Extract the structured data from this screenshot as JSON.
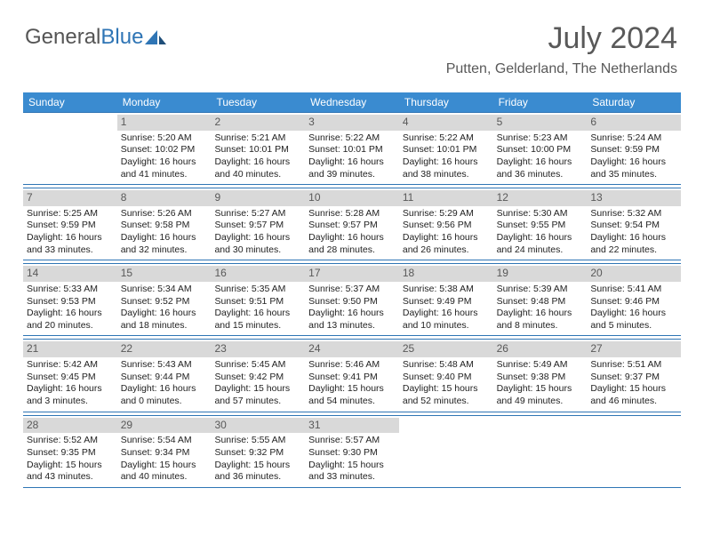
{
  "logo": {
    "part1": "General",
    "part2": "Blue"
  },
  "title": {
    "month": "July 2024",
    "location": "Putten, Gelderland, The Netherlands"
  },
  "colors": {
    "header_bg": "#3a8bd0",
    "header_text": "#ffffff",
    "daynum_bg": "#d9d9d9",
    "rule": "#2f75b5",
    "text": "#222222",
    "title_text": "#595959",
    "logo_accent": "#2f75b5"
  },
  "day_names": [
    "Sunday",
    "Monday",
    "Tuesday",
    "Wednesday",
    "Thursday",
    "Friday",
    "Saturday"
  ],
  "weeks": [
    [
      {
        "n": "",
        "t": ""
      },
      {
        "n": "1",
        "t": "Sunrise: 5:20 AM\nSunset: 10:02 PM\nDaylight: 16 hours and 41 minutes."
      },
      {
        "n": "2",
        "t": "Sunrise: 5:21 AM\nSunset: 10:01 PM\nDaylight: 16 hours and 40 minutes."
      },
      {
        "n": "3",
        "t": "Sunrise: 5:22 AM\nSunset: 10:01 PM\nDaylight: 16 hours and 39 minutes."
      },
      {
        "n": "4",
        "t": "Sunrise: 5:22 AM\nSunset: 10:01 PM\nDaylight: 16 hours and 38 minutes."
      },
      {
        "n": "5",
        "t": "Sunrise: 5:23 AM\nSunset: 10:00 PM\nDaylight: 16 hours and 36 minutes."
      },
      {
        "n": "6",
        "t": "Sunrise: 5:24 AM\nSunset: 9:59 PM\nDaylight: 16 hours and 35 minutes."
      }
    ],
    [
      {
        "n": "7",
        "t": "Sunrise: 5:25 AM\nSunset: 9:59 PM\nDaylight: 16 hours and 33 minutes."
      },
      {
        "n": "8",
        "t": "Sunrise: 5:26 AM\nSunset: 9:58 PM\nDaylight: 16 hours and 32 minutes."
      },
      {
        "n": "9",
        "t": "Sunrise: 5:27 AM\nSunset: 9:57 PM\nDaylight: 16 hours and 30 minutes."
      },
      {
        "n": "10",
        "t": "Sunrise: 5:28 AM\nSunset: 9:57 PM\nDaylight: 16 hours and 28 minutes."
      },
      {
        "n": "11",
        "t": "Sunrise: 5:29 AM\nSunset: 9:56 PM\nDaylight: 16 hours and 26 minutes."
      },
      {
        "n": "12",
        "t": "Sunrise: 5:30 AM\nSunset: 9:55 PM\nDaylight: 16 hours and 24 minutes."
      },
      {
        "n": "13",
        "t": "Sunrise: 5:32 AM\nSunset: 9:54 PM\nDaylight: 16 hours and 22 minutes."
      }
    ],
    [
      {
        "n": "14",
        "t": "Sunrise: 5:33 AM\nSunset: 9:53 PM\nDaylight: 16 hours and 20 minutes."
      },
      {
        "n": "15",
        "t": "Sunrise: 5:34 AM\nSunset: 9:52 PM\nDaylight: 16 hours and 18 minutes."
      },
      {
        "n": "16",
        "t": "Sunrise: 5:35 AM\nSunset: 9:51 PM\nDaylight: 16 hours and 15 minutes."
      },
      {
        "n": "17",
        "t": "Sunrise: 5:37 AM\nSunset: 9:50 PM\nDaylight: 16 hours and 13 minutes."
      },
      {
        "n": "18",
        "t": "Sunrise: 5:38 AM\nSunset: 9:49 PM\nDaylight: 16 hours and 10 minutes."
      },
      {
        "n": "19",
        "t": "Sunrise: 5:39 AM\nSunset: 9:48 PM\nDaylight: 16 hours and 8 minutes."
      },
      {
        "n": "20",
        "t": "Sunrise: 5:41 AM\nSunset: 9:46 PM\nDaylight: 16 hours and 5 minutes."
      }
    ],
    [
      {
        "n": "21",
        "t": "Sunrise: 5:42 AM\nSunset: 9:45 PM\nDaylight: 16 hours and 3 minutes."
      },
      {
        "n": "22",
        "t": "Sunrise: 5:43 AM\nSunset: 9:44 PM\nDaylight: 16 hours and 0 minutes."
      },
      {
        "n": "23",
        "t": "Sunrise: 5:45 AM\nSunset: 9:42 PM\nDaylight: 15 hours and 57 minutes."
      },
      {
        "n": "24",
        "t": "Sunrise: 5:46 AM\nSunset: 9:41 PM\nDaylight: 15 hours and 54 minutes."
      },
      {
        "n": "25",
        "t": "Sunrise: 5:48 AM\nSunset: 9:40 PM\nDaylight: 15 hours and 52 minutes."
      },
      {
        "n": "26",
        "t": "Sunrise: 5:49 AM\nSunset: 9:38 PM\nDaylight: 15 hours and 49 minutes."
      },
      {
        "n": "27",
        "t": "Sunrise: 5:51 AM\nSunset: 9:37 PM\nDaylight: 15 hours and 46 minutes."
      }
    ],
    [
      {
        "n": "28",
        "t": "Sunrise: 5:52 AM\nSunset: 9:35 PM\nDaylight: 15 hours and 43 minutes."
      },
      {
        "n": "29",
        "t": "Sunrise: 5:54 AM\nSunset: 9:34 PM\nDaylight: 15 hours and 40 minutes."
      },
      {
        "n": "30",
        "t": "Sunrise: 5:55 AM\nSunset: 9:32 PM\nDaylight: 15 hours and 36 minutes."
      },
      {
        "n": "31",
        "t": "Sunrise: 5:57 AM\nSunset: 9:30 PM\nDaylight: 15 hours and 33 minutes."
      },
      {
        "n": "",
        "t": ""
      },
      {
        "n": "",
        "t": ""
      },
      {
        "n": "",
        "t": ""
      }
    ]
  ]
}
